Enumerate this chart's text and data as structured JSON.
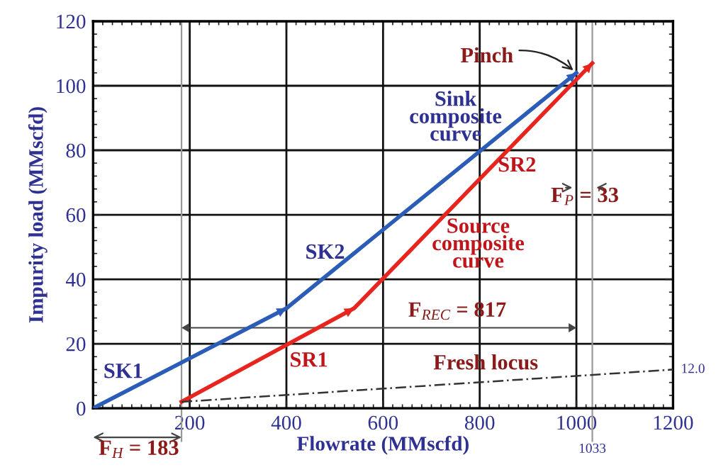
{
  "chart_data": {
    "type": "line",
    "xlabel": "Flowrate (MMscfd)",
    "ylabel": "Impurity load (MMscfd)",
    "xlim": [
      0,
      1200
    ],
    "ylim": [
      0,
      120
    ],
    "xticks": [
      {
        "value": 0,
        "label": null
      },
      200,
      400,
      600,
      800,
      1000,
      1200
    ],
    "yticks": [
      0,
      20,
      40,
      60,
      80,
      100,
      120
    ],
    "grid": true,
    "marker": "none",
    "series": [
      {
        "name": "Sink\ncomposite\ncurve",
        "x": [
          0,
          400,
          1000
        ],
        "values": [
          0,
          31,
          104
        ],
        "color": "#2a5cb8",
        "line_style": "solid"
      },
      {
        "name": "Source\ncomposite\ncurve",
        "x": [
          183,
          540,
          1033
        ],
        "values": [
          2,
          31,
          107
        ],
        "color": "#e8241f",
        "line_style": "solid"
      },
      {
        "name": "Fresh locus",
        "x": [
          183,
          1200
        ],
        "values": [
          2,
          12
        ],
        "color": "#333333",
        "line_style": "dashed"
      }
    ],
    "ref_lines": [
      {
        "axis": "x",
        "value": 183,
        "color": "#999999"
      },
      {
        "axis": "x",
        "value": 1033,
        "label": "1033",
        "color": "#999999"
      }
    ],
    "annotations": [
      "SK1",
      "SK2",
      "SR1",
      "SR2",
      "F$_{REC}$ = 817",
      "F$_{P}$ = 33",
      "F$_{H}$ = 183",
      {
        "text": "Pinch",
        "x": 1000,
        "y": 104
      },
      {
        "text": "12.0",
        "x": 1200,
        "y": 12
      }
    ]
  }
}
